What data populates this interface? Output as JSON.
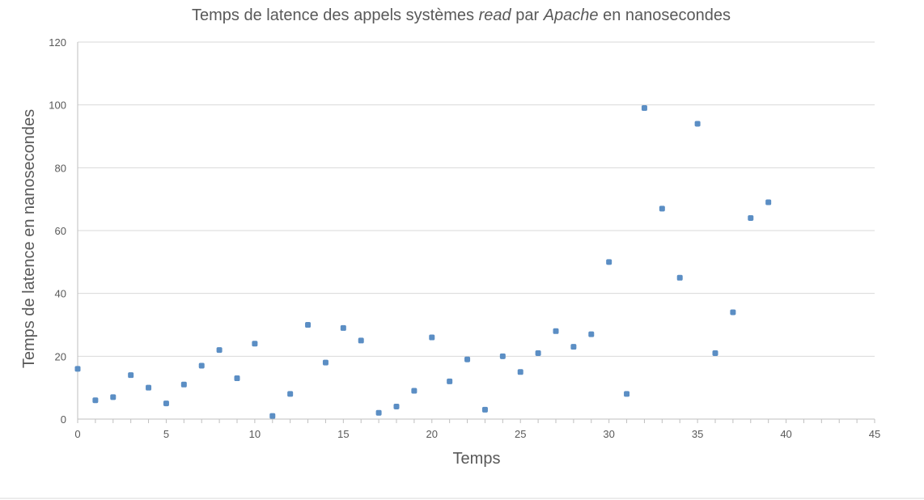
{
  "chart_data": {
    "type": "scatter",
    "title_parts": [
      {
        "text": "Temps de latence des appels systèmes ",
        "italic": false
      },
      {
        "text": "read",
        "italic": true
      },
      {
        "text": " par ",
        "italic": false
      },
      {
        "text": "Apache",
        "italic": true
      },
      {
        "text": " en nanosecondes",
        "italic": false
      }
    ],
    "xlabel": "Temps",
    "ylabel": "Temps de latence en nanosecondes",
    "xlim": [
      0,
      45
    ],
    "ylim": [
      0,
      120
    ],
    "xticks": [
      0,
      5,
      10,
      15,
      20,
      25,
      30,
      35,
      40,
      45
    ],
    "yticks": [
      0,
      20,
      40,
      60,
      80,
      100,
      120
    ],
    "grid": "horizontal",
    "legend": "none",
    "marker_color": "#5b8ec4",
    "x": [
      0,
      1,
      2,
      3,
      4,
      5,
      6,
      7,
      8,
      9,
      10,
      11,
      12,
      13,
      14,
      15,
      16,
      17,
      18,
      19,
      20,
      21,
      22,
      23,
      24,
      25,
      26,
      27,
      28,
      29,
      30,
      31,
      32,
      33,
      34,
      35,
      36,
      37,
      38,
      39
    ],
    "y": [
      16,
      6,
      7,
      14,
      10,
      5,
      11,
      17,
      22,
      13,
      24,
      1,
      8,
      30,
      18,
      29,
      25,
      2,
      4,
      9,
      26,
      12,
      19,
      3,
      20,
      15,
      21,
      28,
      23,
      27,
      50,
      8,
      99,
      67,
      45,
      94,
      21,
      34,
      64,
      69
    ]
  }
}
